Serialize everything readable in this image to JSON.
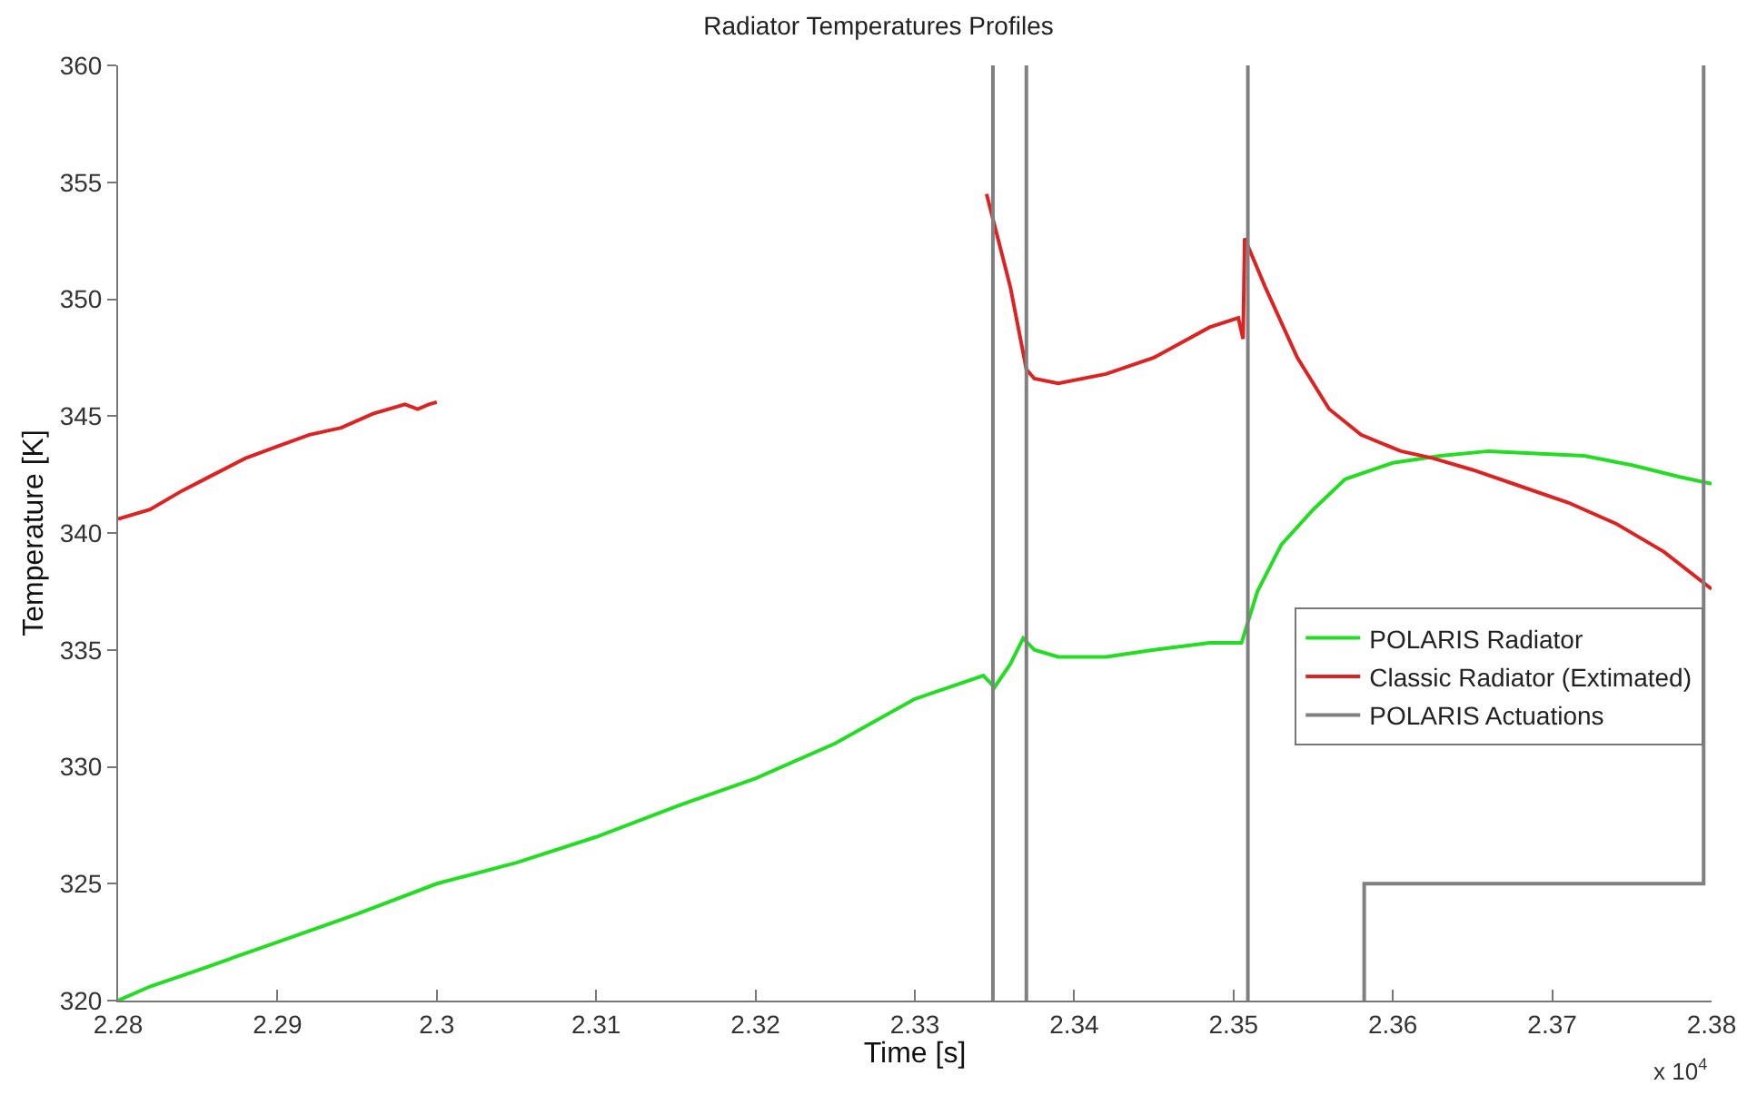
{
  "chart_data": {
    "type": "line",
    "title": "Radiator Temperatures Profiles",
    "xlabel": "Time [s]",
    "ylabel": "Temperature [K]",
    "annotations": [
      "x 10$^{4}$"
    ],
    "xlim": [
      2.28,
      2.38
    ],
    "xticks": [
      2.28,
      2.29,
      2.3,
      2.31,
      2.32,
      2.33,
      2.34,
      2.35,
      2.36,
      2.37,
      2.38
    ],
    "ylim": [
      320,
      360
    ],
    "yticks": [
      320,
      325,
      330,
      335,
      340,
      345,
      350,
      355,
      360
    ],
    "legend": "right",
    "marker": "none",
    "line_style": "solid",
    "series": [
      {
        "name": "POLARIS Radiator",
        "color": "#22dd22",
        "x": [
          2.28,
          2.282,
          2.285,
          2.29,
          2.295,
          2.3,
          2.305,
          2.31,
          2.315,
          2.32,
          2.325,
          2.33,
          2.3343,
          2.335,
          2.336,
          2.3368,
          2.3375,
          2.339,
          2.342,
          2.345,
          2.3485,
          2.3505,
          2.3515,
          2.353,
          2.355,
          2.357,
          2.36,
          2.363,
          2.366,
          2.369,
          2.372,
          2.375,
          2.378,
          2.38
        ],
        "values": [
          320,
          320.6,
          321.3,
          322.5,
          323.7,
          325.0,
          325.9,
          327.0,
          328.3,
          329.5,
          331.0,
          332.9,
          333.9,
          333.4,
          334.4,
          335.5,
          335.0,
          334.7,
          334.7,
          335.0,
          335.3,
          335.3,
          337.5,
          339.5,
          341.0,
          342.3,
          343.0,
          343.3,
          343.5,
          343.4,
          343.3,
          342.9,
          342.4,
          342.1
        ]
      },
      {
        "name": "Classic Radiator (Extimated)",
        "color": "#dd2222",
        "x": [
          2.28,
          2.282,
          2.284,
          2.286,
          2.288,
          2.29,
          2.292,
          2.294,
          2.296,
          2.298,
          2.2988,
          2.2995,
          2.3,
          2.32,
          2.3345,
          2.336,
          2.337,
          2.3375,
          2.339,
          2.342,
          2.345,
          2.3485,
          2.3503,
          2.3506,
          2.3507,
          2.352,
          2.354,
          2.356,
          2.358,
          2.3605,
          2.3625,
          2.365,
          2.368,
          2.371,
          2.374,
          2.377,
          2.38
        ],
        "values": [
          340.6,
          341.0,
          341.8,
          342.5,
          343.2,
          343.7,
          344.2,
          344.5,
          345.1,
          345.5,
          345.3,
          345.5,
          345.6,
          null,
          354.5,
          350.5,
          347.0,
          346.6,
          346.4,
          346.8,
          347.5,
          348.8,
          349.2,
          348.3,
          352.6,
          350.5,
          347.5,
          345.3,
          344.2,
          343.5,
          343.2,
          342.7,
          342.0,
          341.3,
          340.4,
          339.2,
          337.6
        ]
      },
      {
        "name": "POLARIS Actuations",
        "color": "#808080",
        "x": [
          2.3349,
          2.3349,
          null,
          2.337,
          2.337,
          null,
          2.3509,
          2.3509,
          null,
          2.3582,
          2.3582,
          2.3795,
          2.3795
        ],
        "values": [
          320,
          360,
          null,
          320,
          360,
          null,
          320,
          360,
          null,
          320,
          325,
          325,
          360
        ]
      }
    ]
  }
}
